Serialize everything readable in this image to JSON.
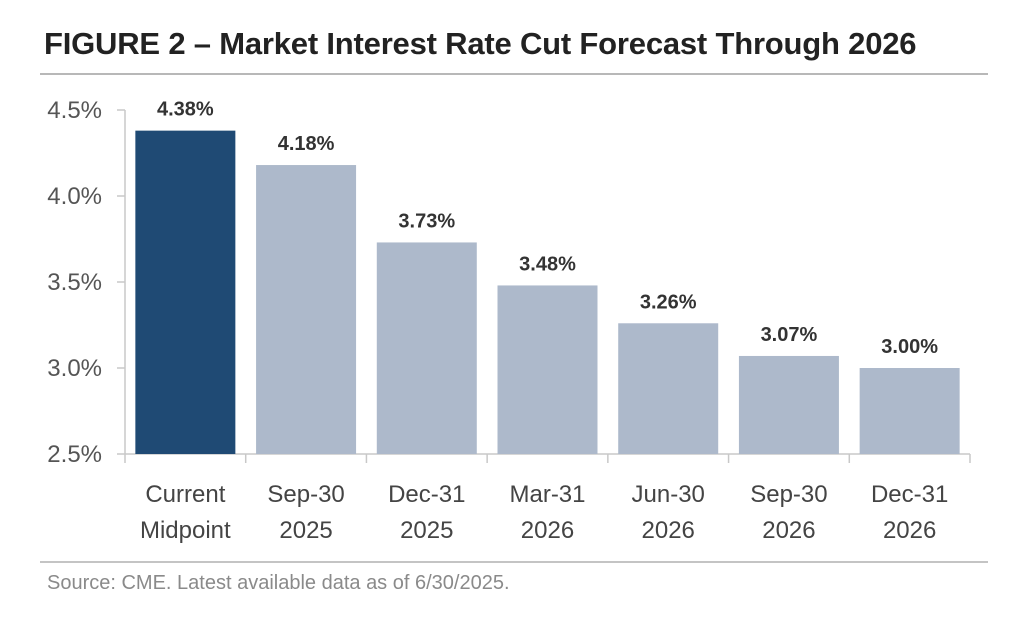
{
  "figure": {
    "title": "FIGURE 2 – Market Interest Rate Cut Forecast Through 2026",
    "source": "Source: CME. Latest available data as of 6/30/2025."
  },
  "colors": {
    "highlight_bar": "#1f4a74",
    "bar": "#adb9cb",
    "axis": "#c8c8c8",
    "title_text": "#222222"
  },
  "chart_data": {
    "type": "bar",
    "title": "FIGURE 2 – Market Interest Rate Cut Forecast Through 2026",
    "xlabel": "",
    "ylabel": "",
    "ylim": [
      2.5,
      4.5
    ],
    "yticks": [
      {
        "value": 4.5,
        "label": "4.5%"
      },
      {
        "value": 4.0,
        "label": "4.0%"
      },
      {
        "value": 3.5,
        "label": "3.5%"
      },
      {
        "value": 3.0,
        "label": "3.0%"
      },
      {
        "value": 2.5,
        "label": "2.5%"
      }
    ],
    "grid": false,
    "categories": [
      {
        "line1": "Current",
        "line2": "Midpoint"
      },
      {
        "line1": "Sep-30",
        "line2": "2025"
      },
      {
        "line1": "Dec-31",
        "line2": "2025"
      },
      {
        "line1": "Mar-31",
        "line2": "2026"
      },
      {
        "line1": "Jun-30",
        "line2": "2026"
      },
      {
        "line1": "Sep-30",
        "line2": "2026"
      },
      {
        "line1": "Dec-31",
        "line2": "2026"
      }
    ],
    "values": [
      4.38,
      4.18,
      3.73,
      3.48,
      3.26,
      3.07,
      3.0
    ],
    "value_labels": [
      "4.38%",
      "4.18%",
      "3.73%",
      "3.48%",
      "3.26%",
      "3.07%",
      "3.00%"
    ],
    "highlight_index": 0
  }
}
